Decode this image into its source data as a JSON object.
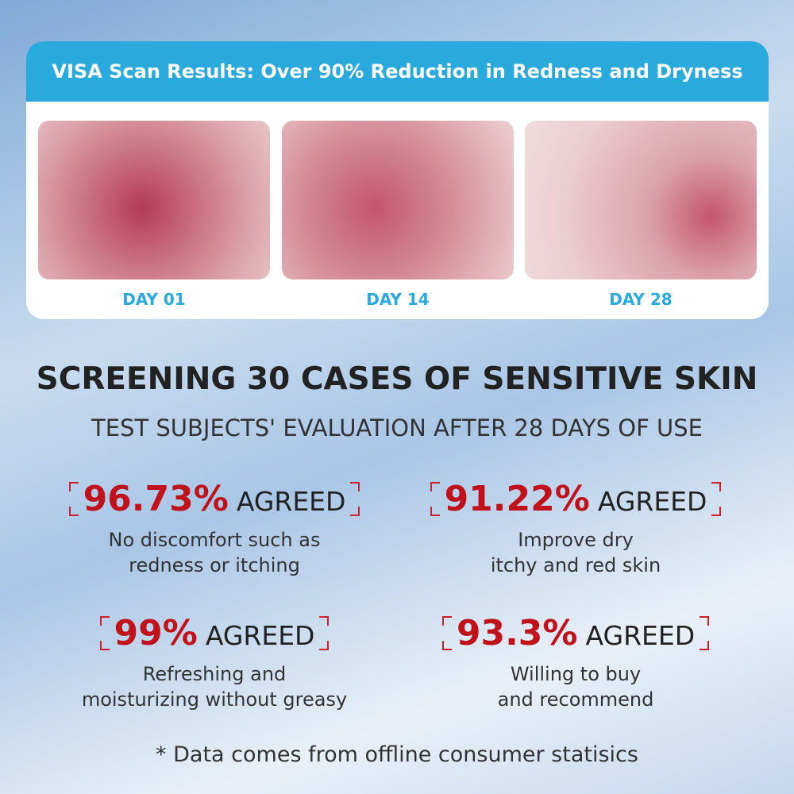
{
  "header": {
    "title": "VISA Scan Results: Over 90% Reduction in Redness and Dryness"
  },
  "scans": [
    {
      "label": "DAY 01"
    },
    {
      "label": "DAY 14"
    },
    {
      "label": "DAY 28"
    }
  ],
  "heading": "SCREENING 30 CASES OF SENSITIVE SKIN",
  "subheading": "TEST SUBJECTS' EVALUATION AFTER 28 DAYS OF USE",
  "stats": [
    {
      "percent": "96.73%",
      "word": "AGREED",
      "lines": [
        "No discomfort such as",
        "redness or itching"
      ]
    },
    {
      "percent": "91.22%",
      "word": "AGREED",
      "lines": [
        "Improve dry",
        "itchy and red skin"
      ]
    },
    {
      "percent": "99%",
      "word": "AGREED",
      "lines": [
        "Refreshing and",
        "moisturizing without greasy"
      ]
    },
    {
      "percent": "93.3%",
      "word": "AGREED",
      "lines": [
        "Willing to buy",
        "and recommend"
      ]
    }
  ],
  "footnote": "* Data comes from offline consumer statisics"
}
